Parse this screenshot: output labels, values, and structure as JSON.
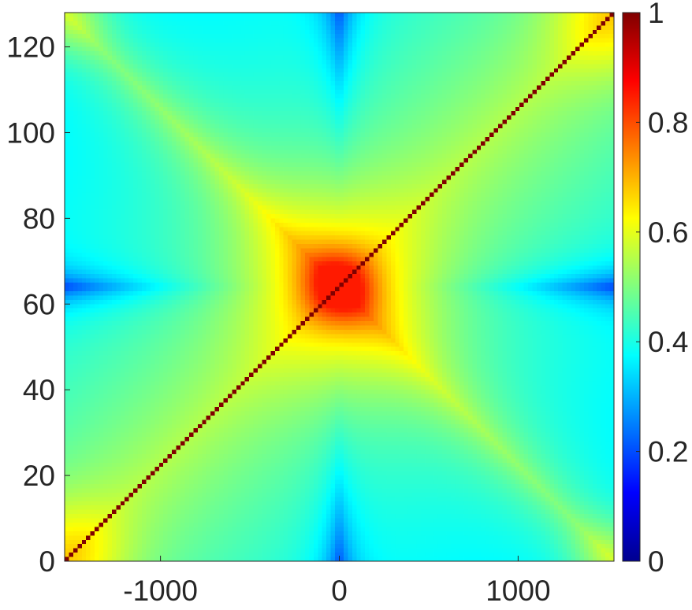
{
  "chart_data": {
    "type": "heatmap",
    "title": "",
    "xlabel": "",
    "ylabel": "",
    "xlim": [
      -1536,
      1536
    ],
    "ylim": [
      0,
      128
    ],
    "x_ticks": [
      -1000,
      0,
      1000
    ],
    "x_tick_labels": [
      "-1000",
      "0",
      "1000"
    ],
    "y_ticks": [
      0,
      20,
      40,
      60,
      80,
      100,
      120
    ],
    "y_tick_labels": [
      "0",
      "20",
      "40",
      "60",
      "80",
      "100",
      "120"
    ],
    "grid_size": 128,
    "colormap": "jet",
    "color_range": [
      0,
      1
    ],
    "colorbar_ticks": [
      0,
      0.2,
      0.4,
      0.6,
      0.8,
      1
    ],
    "colorbar_tick_labels": [
      "0",
      "0.2",
      "0.4",
      "0.6",
      "0.8",
      "1"
    ],
    "diagonal_value": 1.0,
    "approx_values": {
      "center": 0.75,
      "corners": 0.68,
      "top_bottom_center_edges": 0.25,
      "left_right_mid_edges": 0.22,
      "typical_off_diagonal": 0.5
    },
    "grid": false
  }
}
